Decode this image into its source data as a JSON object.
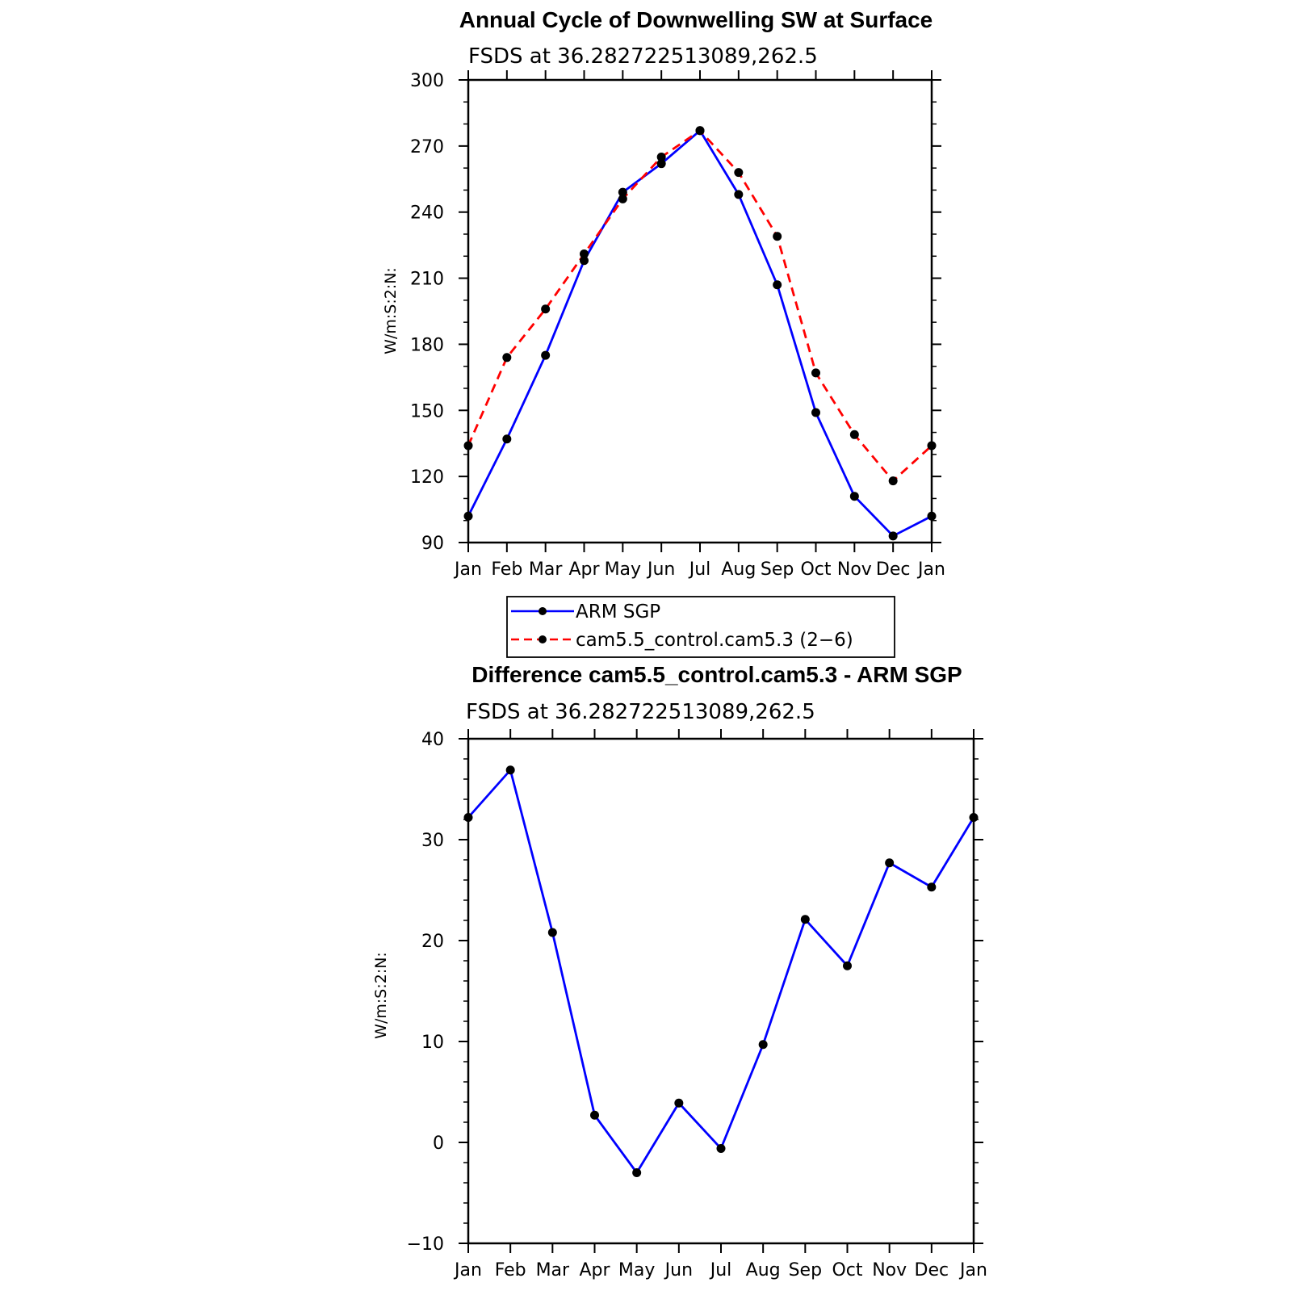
{
  "chart_data": [
    {
      "type": "line",
      "title": "Annual Cycle of Downwelling SW at Surface",
      "subtitle": "FSDS at 36.282722513089,262.5",
      "ylabel": "W/m:S:2:N:",
      "xlabel": "",
      "categories": [
        "Jan",
        "Feb",
        "Mar",
        "Apr",
        "May",
        "Jun",
        "Jul",
        "Aug",
        "Sep",
        "Oct",
        "Nov",
        "Dec",
        "Jan"
      ],
      "ylim": [
        90,
        300
      ],
      "yticks": [
        "90",
        "120",
        "150",
        "180",
        "210",
        "240",
        "270",
        "300"
      ],
      "grid": false,
      "legend_position": "below",
      "series": [
        {
          "name": "ARM SGP",
          "color": "#0000ff",
          "dash": "solid",
          "values": [
            102,
            137,
            175,
            218,
            249,
            262,
            277,
            248,
            207,
            149,
            111,
            93,
            102
          ]
        },
        {
          "name": "cam5.5_control.cam5.3 (2−6)",
          "color": "#ff0000",
          "dash": "dashed",
          "values": [
            134,
            174,
            196,
            221,
            246,
            265,
            277,
            258,
            229,
            167,
            139,
            118,
            134
          ]
        }
      ]
    },
    {
      "type": "line",
      "title": "Difference cam5.5_control.cam5.3 - ARM SGP",
      "subtitle": "FSDS at 36.282722513089,262.5",
      "ylabel": "W/m:S:2:N:",
      "xlabel": "",
      "categories": [
        "Jan",
        "Feb",
        "Mar",
        "Apr",
        "May",
        "Jun",
        "Jul",
        "Aug",
        "Sep",
        "Oct",
        "Nov",
        "Dec",
        "Jan"
      ],
      "ylim": [
        -10,
        40
      ],
      "yticks": [
        "−10",
        "0",
        "10",
        "20",
        "30",
        "40"
      ],
      "grid": false,
      "series": [
        {
          "color": "#0000ff",
          "dash": "solid",
          "values": [
            32.2,
            36.9,
            20.8,
            2.7,
            -3.0,
            3.9,
            -0.6,
            9.7,
            22.1,
            17.5,
            27.7,
            25.3,
            32.2
          ]
        }
      ]
    }
  ]
}
